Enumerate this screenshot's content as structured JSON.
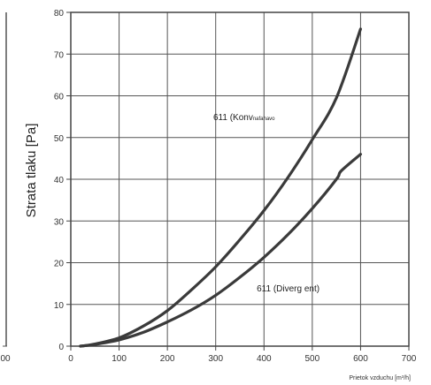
{
  "chart_data": {
    "type": "line",
    "title": "",
    "ylabel": "Strata tlaku [Pa]",
    "xlabel": "Prietok vzduchu [m³/h]",
    "xlim": [
      0,
      700
    ],
    "ylim": [
      0,
      80
    ],
    "xticks": [
      "0",
      "100",
      "200",
      "300",
      "400",
      "500",
      "600",
      "700"
    ],
    "yticks": [
      "0",
      "10",
      "20",
      "30",
      "40",
      "50",
      "60",
      "70",
      "80"
    ],
    "grid": true,
    "left_panel_tick": "00",
    "series": [
      {
        "name": "611 (Konfuzor)",
        "x": [
          20,
          50,
          100,
          150,
          200,
          250,
          300,
          350,
          400,
          450,
          500,
          550,
          600
        ],
        "y": [
          0,
          0.5,
          2,
          4.8,
          8.5,
          13.5,
          19,
          25.5,
          32.5,
          40.5,
          49.5,
          59.5,
          76
        ]
      },
      {
        "name": "611 (Divergent)",
        "x": [
          20,
          50,
          100,
          150,
          200,
          250,
          300,
          350,
          400,
          450,
          500,
          550,
          560,
          600
        ],
        "y": [
          0,
          0.4,
          1.5,
          3.3,
          5.8,
          8.7,
          12.2,
          16.5,
          21.3,
          26.8,
          33,
          40,
          42,
          46
        ]
      }
    ],
    "annotations": {
      "upper_main": "611 (Konv",
      "upper_small": "nafahavo",
      "lower": "611 (Diverg ent)"
    }
  }
}
